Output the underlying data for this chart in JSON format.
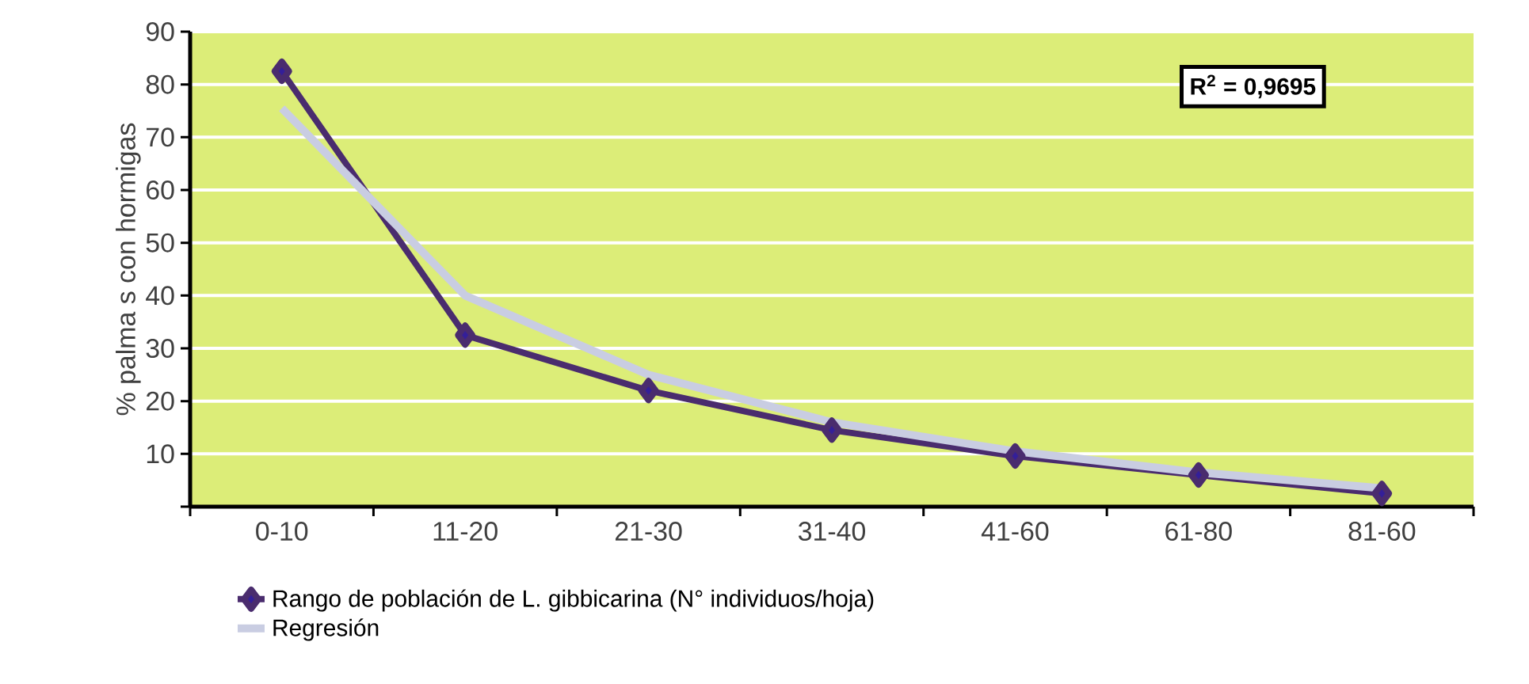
{
  "chart_data": {
    "type": "line",
    "ylabel": "% palma s con hormigas",
    "categories": [
      "0-10",
      "11-20",
      "21-30",
      "31-40",
      "41-60",
      "61-80",
      "81-60"
    ],
    "series": [
      {
        "name": "Rango de población de L. gibbicarina (N° individuos/hoja)",
        "color": "#4a2c6e",
        "values": [
          82.5,
          32.5,
          22,
          14.5,
          9.6,
          6,
          2.5
        ]
      },
      {
        "name": "Regresión",
        "color": "#c9cde2",
        "values": [
          75.5,
          40,
          25,
          16,
          10.5,
          6.5,
          3.5
        ],
        "marker": "none"
      }
    ],
    "ylim": [
      0,
      90
    ],
    "yticks": [
      {
        "value": 0,
        "label": null
      },
      10,
      20,
      30,
      40,
      50,
      60,
      70,
      80,
      90
    ],
    "grid": "y",
    "legend": "bottom",
    "marker": "diamond",
    "line_style": "solid",
    "annotations": [
      "R$^{2}$ = 0,9695"
    ]
  }
}
